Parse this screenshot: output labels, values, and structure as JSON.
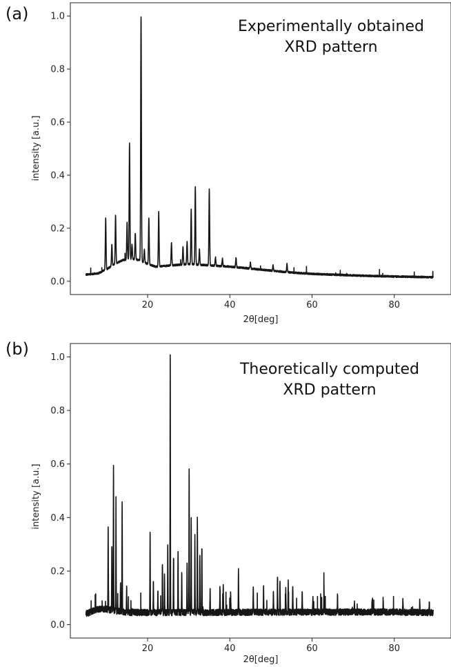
{
  "chart_data": [
    {
      "type": "line",
      "panel_label": "(a)",
      "annotation": [
        "Experimentally obtained",
        "XRD pattern"
      ],
      "xlabel": "2θ[deg]",
      "ylabel": "intensity [a.u.]",
      "xlim": [
        1.2,
        93.8
      ],
      "ylim": [
        -0.05,
        1.05
      ],
      "xticks": [
        20,
        40,
        60,
        80
      ],
      "xtick_labels": [
        "20",
        "40",
        "60",
        "80"
      ],
      "yticks": [
        0.0,
        0.2,
        0.4,
        0.6,
        0.8,
        1.0
      ],
      "ytick_labels": [
        "0.0",
        "0.2",
        "0.4",
        "0.6",
        "0.8",
        "1.0"
      ],
      "grid": false,
      "background": [
        [
          5,
          0.025
        ],
        [
          8,
          0.03
        ],
        [
          10,
          0.045
        ],
        [
          12,
          0.065
        ],
        [
          14,
          0.08
        ],
        [
          16,
          0.085
        ],
        [
          18,
          0.08
        ],
        [
          20,
          0.065
        ],
        [
          22,
          0.055
        ],
        [
          26,
          0.06
        ],
        [
          30,
          0.065
        ],
        [
          35,
          0.06
        ],
        [
          40,
          0.055
        ],
        [
          45,
          0.048
        ],
        [
          50,
          0.04
        ],
        [
          55,
          0.033
        ],
        [
          60,
          0.028
        ],
        [
          70,
          0.022
        ],
        [
          80,
          0.018
        ],
        [
          89.5,
          0.015
        ]
      ],
      "peaks": [
        {
          "x": 9.8,
          "y": 0.235
        },
        {
          "x": 11.3,
          "y": 0.14
        },
        {
          "x": 12.2,
          "y": 0.25
        },
        {
          "x": 15.0,
          "y": 0.22
        },
        {
          "x": 15.6,
          "y": 0.52
        },
        {
          "x": 16.2,
          "y": 0.14
        },
        {
          "x": 17.0,
          "y": 0.18
        },
        {
          "x": 18.4,
          "y": 1.0
        },
        {
          "x": 19.2,
          "y": 0.12
        },
        {
          "x": 20.3,
          "y": 0.235
        },
        {
          "x": 22.7,
          "y": 0.26
        },
        {
          "x": 25.8,
          "y": 0.145
        },
        {
          "x": 28.6,
          "y": 0.13
        },
        {
          "x": 29.6,
          "y": 0.15
        },
        {
          "x": 30.6,
          "y": 0.27
        },
        {
          "x": 31.6,
          "y": 0.355
        },
        {
          "x": 32.6,
          "y": 0.12
        },
        {
          "x": 35.0,
          "y": 0.345
        },
        {
          "x": 36.5,
          "y": 0.09
        },
        {
          "x": 38.2,
          "y": 0.085
        },
        {
          "x": 41.5,
          "y": 0.09
        },
        {
          "x": 45.0,
          "y": 0.07
        },
        {
          "x": 50.5,
          "y": 0.06
        },
        {
          "x": 53.9,
          "y": 0.065
        }
      ],
      "noise": 0.01
    },
    {
      "type": "line",
      "panel_label": "(b)",
      "annotation": [
        "Theoretically computed",
        "XRD pattern"
      ],
      "xlabel": "2θ[deg]",
      "ylabel": "intensity [a.u.]",
      "xlim": [
        1.2,
        93.8
      ],
      "ylim": [
        -0.05,
        1.05
      ],
      "xticks": [
        20,
        40,
        60,
        80
      ],
      "xtick_labels": [
        "20",
        "40",
        "60",
        "80"
      ],
      "yticks": [
        0.0,
        0.2,
        0.4,
        0.6,
        0.8,
        1.0
      ],
      "ytick_labels": [
        "0.0",
        "0.2",
        "0.4",
        "0.6",
        "0.8",
        "1.0"
      ],
      "grid": false,
      "background": [
        [
          5,
          0.04
        ],
        [
          6.5,
          0.05
        ],
        [
          8.5,
          0.06
        ],
        [
          10,
          0.058
        ],
        [
          12,
          0.052
        ],
        [
          15,
          0.046
        ],
        [
          20,
          0.045
        ],
        [
          40,
          0.046
        ],
        [
          60,
          0.047
        ],
        [
          80,
          0.047
        ],
        [
          89.5,
          0.045
        ]
      ],
      "peaks": [
        {
          "x": 10.4,
          "y": 0.355
        },
        {
          "x": 11.3,
          "y": 0.3
        },
        {
          "x": 11.7,
          "y": 0.585
        },
        {
          "x": 12.3,
          "y": 0.41
        },
        {
          "x": 13.4,
          "y": 0.15
        },
        {
          "x": 13.8,
          "y": 0.455
        },
        {
          "x": 14.9,
          "y": 0.15
        },
        {
          "x": 20.6,
          "y": 0.335
        },
        {
          "x": 21.4,
          "y": 0.16
        },
        {
          "x": 22.5,
          "y": 0.12
        },
        {
          "x": 23.6,
          "y": 0.235
        },
        {
          "x": 24.1,
          "y": 0.19
        },
        {
          "x": 24.9,
          "y": 0.3
        },
        {
          "x": 25.5,
          "y": 1.0
        },
        {
          "x": 26.3,
          "y": 0.24
        },
        {
          "x": 27.4,
          "y": 0.27
        },
        {
          "x": 28.3,
          "y": 0.19
        },
        {
          "x": 29.6,
          "y": 0.23
        },
        {
          "x": 30.1,
          "y": 0.585
        },
        {
          "x": 30.6,
          "y": 0.395
        },
        {
          "x": 31.5,
          "y": 0.33
        },
        {
          "x": 32.1,
          "y": 0.39
        },
        {
          "x": 32.7,
          "y": 0.27
        },
        {
          "x": 33.2,
          "y": 0.295
        },
        {
          "x": 35.2,
          "y": 0.13
        },
        {
          "x": 37.6,
          "y": 0.14
        },
        {
          "x": 38.4,
          "y": 0.15
        },
        {
          "x": 40.2,
          "y": 0.12
        },
        {
          "x": 42.1,
          "y": 0.2
        },
        {
          "x": 45.7,
          "y": 0.135
        },
        {
          "x": 48.2,
          "y": 0.15
        },
        {
          "x": 50.6,
          "y": 0.13
        },
        {
          "x": 51.6,
          "y": 0.18
        },
        {
          "x": 52.2,
          "y": 0.16
        },
        {
          "x": 53.6,
          "y": 0.13
        },
        {
          "x": 54.2,
          "y": 0.155
        },
        {
          "x": 55.3,
          "y": 0.15
        },
        {
          "x": 57.6,
          "y": 0.12
        },
        {
          "x": 60.2,
          "y": 0.1
        },
        {
          "x": 62.9,
          "y": 0.14
        },
        {
          "x": 66.2,
          "y": 0.11
        },
        {
          "x": 70.3,
          "y": 0.09
        },
        {
          "x": 74.6,
          "y": 0.09
        },
        {
          "x": 77.3,
          "y": 0.1
        },
        {
          "x": 82.1,
          "y": 0.09
        },
        {
          "x": 86.2,
          "y": 0.09
        },
        {
          "x": 88.5,
          "y": 0.08
        }
      ],
      "noise": 0.035
    }
  ]
}
